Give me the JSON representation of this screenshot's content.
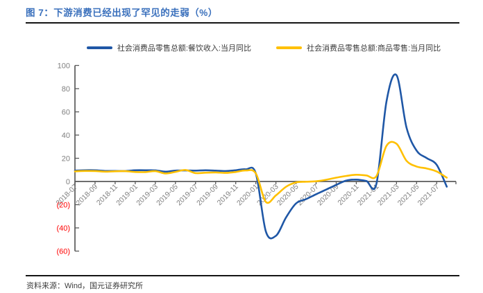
{
  "title": "图 7：下游消费已经出现了罕见的走弱（%）",
  "footer": {
    "source_label": "资料来源：Wind，国元证券研究所"
  },
  "colors": {
    "title_blue": "#3a70bc",
    "rule_black": "#141414",
    "axis_gray": "#595959",
    "tick_label_gray": "#808080",
    "negative_label_red": "#ff0000",
    "series_blue": "#1f57a6",
    "series_yellow": "#ffc000"
  },
  "chart_data": {
    "type": "line",
    "title": "下游消费已经出现了罕见的走弱（%）",
    "grid": false,
    "legend_position": "top",
    "ylim": [
      -60,
      100
    ],
    "y_ticks": [
      {
        "value": 100,
        "label": "100"
      },
      {
        "value": 80,
        "label": "80"
      },
      {
        "value": 60,
        "label": "60"
      },
      {
        "value": 40,
        "label": "40"
      },
      {
        "value": 20,
        "label": "20"
      },
      {
        "value": 0,
        "label": "0"
      },
      {
        "value": -20,
        "label": "(20)"
      },
      {
        "value": -40,
        "label": "(40)"
      },
      {
        "value": -60,
        "label": "(60)"
      }
    ],
    "x": [
      "2018-07",
      "2018-08",
      "2018-09",
      "2018-10",
      "2018-11",
      "2018-12",
      "2019-01",
      "2019-02",
      "2019-03",
      "2019-04",
      "2019-05",
      "2019-06",
      "2019-07",
      "2019-08",
      "2019-09",
      "2019-10",
      "2019-11",
      "2019-12",
      "2020-01",
      "2020-02",
      "2020-03",
      "2020-04",
      "2020-05",
      "2020-06",
      "2020-07",
      "2020-08",
      "2020-09",
      "2020-10",
      "2020-11",
      "2020-12",
      "2021-01",
      "2021-02",
      "2021-03",
      "2021-04",
      "2021-05",
      "2021-06",
      "2021-07",
      "2021-08"
    ],
    "x_tick_labels": [
      "2018-07",
      "2018-09",
      "2018-11",
      "2019-01",
      "2019-03",
      "2019-05",
      "2019-07",
      "2019-09",
      "2019-11",
      "2020-01",
      "2020-03",
      "2020-05",
      "2020-07",
      "2020-09",
      "2020-11",
      "2021-01",
      "2021-03",
      "2021-05",
      "2021-07"
    ],
    "series": [
      {
        "name": "社会消费品零售总额:餐饮收入:当月同比",
        "color": "#1f57a6",
        "values": [
          9.4,
          9.7,
          9.7,
          9.1,
          9.1,
          9.0,
          9.7,
          9.7,
          9.6,
          8.5,
          9.4,
          9.5,
          9.4,
          9.7,
          9.4,
          9.0,
          9.7,
          10.5,
          7.0,
          -43.1,
          -46.8,
          -31.1,
          -18.9,
          -15.2,
          -11.0,
          -7.0,
          -2.9,
          0.8,
          1.6,
          0.4,
          -2.0,
          68.9,
          91.6,
          46.4,
          26.6,
          20.2,
          14.3,
          -4.5
        ]
      },
      {
        "name": "社会消费品零售总额:商品零售:当月同比",
        "color": "#ffc000",
        "values": [
          8.7,
          9.1,
          9.0,
          8.5,
          8.8,
          8.9,
          8.2,
          8.1,
          8.9,
          6.9,
          8.3,
          9.9,
          7.2,
          7.6,
          7.8,
          7.4,
          8.2,
          9.5,
          7.0,
          -17.6,
          -12.0,
          -4.6,
          -0.8,
          -0.2,
          0.2,
          1.5,
          3.3,
          4.8,
          5.8,
          5.2,
          4.6,
          30.7,
          32.5,
          17.8,
          12.9,
          11.2,
          8.6,
          3.3
        ]
      }
    ]
  }
}
